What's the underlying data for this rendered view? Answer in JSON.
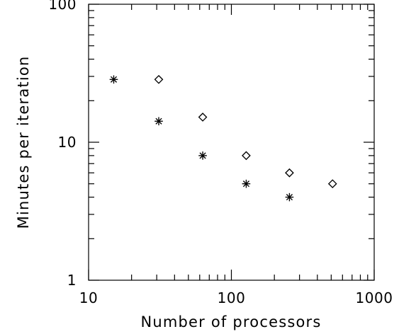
{
  "chart_data": {
    "type": "scatter",
    "title": "",
    "xlabel": "Number of processors",
    "ylabel": "Minutes per iteration",
    "x_scale": "log",
    "y_scale": "log",
    "xlim": [
      10,
      1000
    ],
    "ylim": [
      1,
      100
    ],
    "x_tick_labels": [
      "10",
      "100",
      "1000"
    ],
    "y_tick_labels": [
      "1",
      "10",
      "100"
    ],
    "grid": false,
    "series": [
      {
        "marker": "asterisk",
        "x": [
          15,
          31,
          63,
          127,
          255
        ],
        "y": [
          28.5,
          14.2,
          8.0,
          5.0,
          4.0
        ]
      },
      {
        "marker": "diamond",
        "x": [
          31,
          63,
          127,
          255,
          511
        ],
        "y": [
          28.5,
          15.2,
          8.0,
          6.0,
          5.0
        ]
      }
    ]
  }
}
